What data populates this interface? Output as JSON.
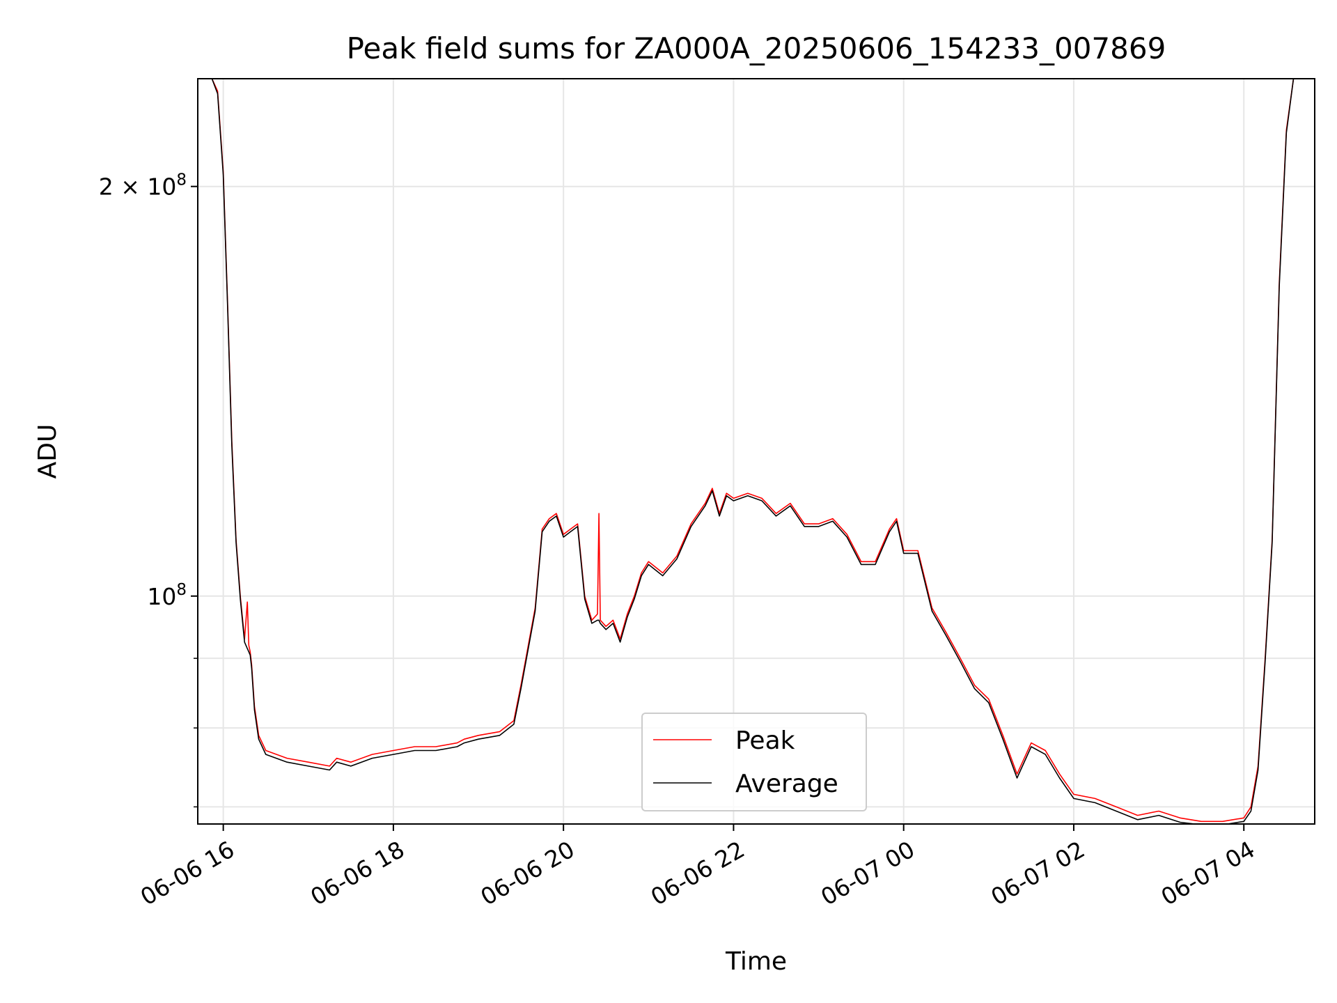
{
  "chart_data": {
    "type": "line",
    "title": "Peak field sums for ZA000A_20250606_154233_007869",
    "xlabel": "Time",
    "ylabel": "ADU",
    "y_scale": "log",
    "grid": true,
    "legend_placement": "lower center",
    "xlim": [
      "2025-06-06 15:42",
      "2025-06-07 04:50"
    ],
    "ylim": [
      68000000,
      240000000
    ],
    "x_ticks": [
      {
        "value": "2025-06-06 16:00",
        "label": "06-06 16"
      },
      {
        "value": "2025-06-06 18:00",
        "label": "06-06 18"
      },
      {
        "value": "2025-06-06 20:00",
        "label": "06-06 20"
      },
      {
        "value": "2025-06-06 22:00",
        "label": "06-06 22"
      },
      {
        "value": "2025-06-07 00:00",
        "label": "06-07 00"
      },
      {
        "value": "2025-06-07 02:00",
        "label": "06-07 02"
      },
      {
        "value": "2025-06-07 04:00",
        "label": "06-07 04"
      }
    ],
    "y_ticks_major": [
      {
        "value": 100000000,
        "label_base": "10",
        "label_exp": "8"
      },
      {
        "value": 200000000,
        "label_base": "2 × 10",
        "label_exp": "8"
      }
    ],
    "y_ticks_minor": [
      70000000,
      80000000,
      90000000
    ],
    "series": [
      {
        "name": "Peak",
        "color": "#ff0000",
        "x": [
          "2025-06-06 15:52",
          "2025-06-06 15:56",
          "2025-06-06 16:00",
          "2025-06-06 16:03",
          "2025-06-06 16:06",
          "2025-06-06 16:09",
          "2025-06-06 16:12",
          "2025-06-06 16:15",
          "2025-06-06 16:17",
          "2025-06-06 16:18",
          "2025-06-06 16:19",
          "2025-06-06 16:20",
          "2025-06-06 16:22",
          "2025-06-06 16:25",
          "2025-06-06 16:30",
          "2025-06-06 16:45",
          "2025-06-06 17:00",
          "2025-06-06 17:15",
          "2025-06-06 17:20",
          "2025-06-06 17:30",
          "2025-06-06 17:45",
          "2025-06-06 18:00",
          "2025-06-06 18:15",
          "2025-06-06 18:30",
          "2025-06-06 18:45",
          "2025-06-06 18:50",
          "2025-06-06 19:00",
          "2025-06-06 19:15",
          "2025-06-06 19:25",
          "2025-06-06 19:30",
          "2025-06-06 19:40",
          "2025-06-06 19:45",
          "2025-06-06 19:50",
          "2025-06-06 19:55",
          "2025-06-06 20:00",
          "2025-06-06 20:05",
          "2025-06-06 20:10",
          "2025-06-06 20:15",
          "2025-06-06 20:20",
          "2025-06-06 20:24",
          "2025-06-06 20:25",
          "2025-06-06 20:26",
          "2025-06-06 20:30",
          "2025-06-06 20:35",
          "2025-06-06 20:40",
          "2025-06-06 20:45",
          "2025-06-06 20:50",
          "2025-06-06 20:55",
          "2025-06-06 21:00",
          "2025-06-06 21:10",
          "2025-06-06 21:20",
          "2025-06-06 21:30",
          "2025-06-06 21:40",
          "2025-06-06 21:45",
          "2025-06-06 21:50",
          "2025-06-06 21:55",
          "2025-06-06 22:00",
          "2025-06-06 22:10",
          "2025-06-06 22:20",
          "2025-06-06 22:30",
          "2025-06-06 22:40",
          "2025-06-06 22:50",
          "2025-06-06 23:00",
          "2025-06-06 23:10",
          "2025-06-06 23:20",
          "2025-06-06 23:30",
          "2025-06-06 23:40",
          "2025-06-06 23:50",
          "2025-06-06 23:55",
          "2025-06-07 00:00",
          "2025-06-07 00:10",
          "2025-06-07 00:20",
          "2025-06-07 00:30",
          "2025-06-07 00:40",
          "2025-06-07 00:50",
          "2025-06-07 01:00",
          "2025-06-07 01:10",
          "2025-06-07 01:20",
          "2025-06-07 01:30",
          "2025-06-07 01:40",
          "2025-06-07 01:50",
          "2025-06-07 02:00",
          "2025-06-07 02:15",
          "2025-06-07 02:30",
          "2025-06-07 02:45",
          "2025-06-07 03:00",
          "2025-06-07 03:15",
          "2025-06-07 03:30",
          "2025-06-07 03:45",
          "2025-06-07 04:00",
          "2025-06-07 04:05",
          "2025-06-07 04:10",
          "2025-06-07 04:15",
          "2025-06-07 04:20",
          "2025-06-07 04:25",
          "2025-06-07 04:30",
          "2025-06-07 04:35",
          "2025-06-07 04:40"
        ],
        "y": [
          240000000,
          235000000,
          205000000,
          165000000,
          130000000,
          110000000,
          100000000,
          93000000,
          99000000,
          92000000,
          91000000,
          89000000,
          83000000,
          79000000,
          77000000,
          76000000,
          75500000,
          75000000,
          76000000,
          75500000,
          76500000,
          77000000,
          77500000,
          77500000,
          78000000,
          78500000,
          79000000,
          79500000,
          81000000,
          86000000,
          98000000,
          112000000,
          114000000,
          115000000,
          111000000,
          112000000,
          113000000,
          100000000,
          96000000,
          97000000,
          115000000,
          96000000,
          95000000,
          96000000,
          93000000,
          97000000,
          100000000,
          104000000,
          106000000,
          104000000,
          107000000,
          113000000,
          117000000,
          120000000,
          115000000,
          119000000,
          118000000,
          119000000,
          118000000,
          115000000,
          117000000,
          113000000,
          113000000,
          114000000,
          111000000,
          106000000,
          106000000,
          112000000,
          114000000,
          108000000,
          108000000,
          98000000,
          94000000,
          90000000,
          86000000,
          84000000,
          79000000,
          74000000,
          78000000,
          77000000,
          74000000,
          71500000,
          71000000,
          70000000,
          69000000,
          69500000,
          68700000,
          68300000,
          68300000,
          68700000,
          70000000,
          75000000,
          90000000,
          110000000,
          170000000,
          220000000,
          240000000,
          240000000
        ]
      },
      {
        "name": "Average",
        "color": "#000000",
        "x": [
          "2025-06-06 15:52",
          "2025-06-06 15:56",
          "2025-06-06 16:00",
          "2025-06-06 16:03",
          "2025-06-06 16:06",
          "2025-06-06 16:09",
          "2025-06-06 16:12",
          "2025-06-06 16:15",
          "2025-06-06 16:17",
          "2025-06-06 16:18",
          "2025-06-06 16:19",
          "2025-06-06 16:20",
          "2025-06-06 16:22",
          "2025-06-06 16:25",
          "2025-06-06 16:30",
          "2025-06-06 16:45",
          "2025-06-06 17:00",
          "2025-06-06 17:15",
          "2025-06-06 17:20",
          "2025-06-06 17:30",
          "2025-06-06 17:45",
          "2025-06-06 18:00",
          "2025-06-06 18:15",
          "2025-06-06 18:30",
          "2025-06-06 18:45",
          "2025-06-06 18:50",
          "2025-06-06 19:00",
          "2025-06-06 19:15",
          "2025-06-06 19:25",
          "2025-06-06 19:30",
          "2025-06-06 19:40",
          "2025-06-06 19:45",
          "2025-06-06 19:50",
          "2025-06-06 19:55",
          "2025-06-06 20:00",
          "2025-06-06 20:05",
          "2025-06-06 20:10",
          "2025-06-06 20:15",
          "2025-06-06 20:20",
          "2025-06-06 20:24",
          "2025-06-06 20:25",
          "2025-06-06 20:26",
          "2025-06-06 20:30",
          "2025-06-06 20:35",
          "2025-06-06 20:40",
          "2025-06-06 20:45",
          "2025-06-06 20:50",
          "2025-06-06 20:55",
          "2025-06-06 21:00",
          "2025-06-06 21:10",
          "2025-06-06 21:20",
          "2025-06-06 21:30",
          "2025-06-06 21:40",
          "2025-06-06 21:45",
          "2025-06-06 21:50",
          "2025-06-06 21:55",
          "2025-06-06 22:00",
          "2025-06-06 22:10",
          "2025-06-06 22:20",
          "2025-06-06 22:30",
          "2025-06-06 22:40",
          "2025-06-06 22:50",
          "2025-06-06 23:00",
          "2025-06-06 23:10",
          "2025-06-06 23:20",
          "2025-06-06 23:30",
          "2025-06-06 23:40",
          "2025-06-06 23:50",
          "2025-06-06 23:55",
          "2025-06-07 00:00",
          "2025-06-07 00:10",
          "2025-06-07 00:20",
          "2025-06-07 00:30",
          "2025-06-07 00:40",
          "2025-06-07 00:50",
          "2025-06-07 01:00",
          "2025-06-07 01:10",
          "2025-06-07 01:20",
          "2025-06-07 01:30",
          "2025-06-07 01:40",
          "2025-06-07 01:50",
          "2025-06-07 02:00",
          "2025-06-07 02:15",
          "2025-06-07 02:30",
          "2025-06-07 02:45",
          "2025-06-07 03:00",
          "2025-06-07 03:15",
          "2025-06-07 03:30",
          "2025-06-07 03:45",
          "2025-06-07 04:00",
          "2025-06-07 04:05",
          "2025-06-07 04:10",
          "2025-06-07 04:15",
          "2025-06-07 04:20",
          "2025-06-07 04:25",
          "2025-06-07 04:30",
          "2025-06-07 04:35",
          "2025-06-07 04:40"
        ],
        "y": [
          240000000,
          234000000,
          204000000,
          164000000,
          129000000,
          109500000,
          99500000,
          92500000,
          91500000,
          91000000,
          90500000,
          88500000,
          82500000,
          78500000,
          76500000,
          75500000,
          75000000,
          74500000,
          75500000,
          75000000,
          76000000,
          76500000,
          77000000,
          77000000,
          77500000,
          78000000,
          78500000,
          79000000,
          80500000,
          85500000,
          97500000,
          111500000,
          113500000,
          114500000,
          110500000,
          111500000,
          112500000,
          99500000,
          95500000,
          96000000,
          96000000,
          95500000,
          94500000,
          95500000,
          92500000,
          96500000,
          99500000,
          103500000,
          105500000,
          103500000,
          106500000,
          112500000,
          116500000,
          119500000,
          114500000,
          118500000,
          117500000,
          118500000,
          117500000,
          114500000,
          116500000,
          112500000,
          112500000,
          113500000,
          110500000,
          105500000,
          105500000,
          111500000,
          113500000,
          107500000,
          107500000,
          97500000,
          93500000,
          89500000,
          85500000,
          83500000,
          78500000,
          73500000,
          77500000,
          76500000,
          73500000,
          71000000,
          70500000,
          69500000,
          68500000,
          69000000,
          68200000,
          67900000,
          67900000,
          68300000,
          69500000,
          74500000,
          89500000,
          109500000,
          169000000,
          219000000,
          240000000,
          240000000
        ]
      }
    ]
  }
}
